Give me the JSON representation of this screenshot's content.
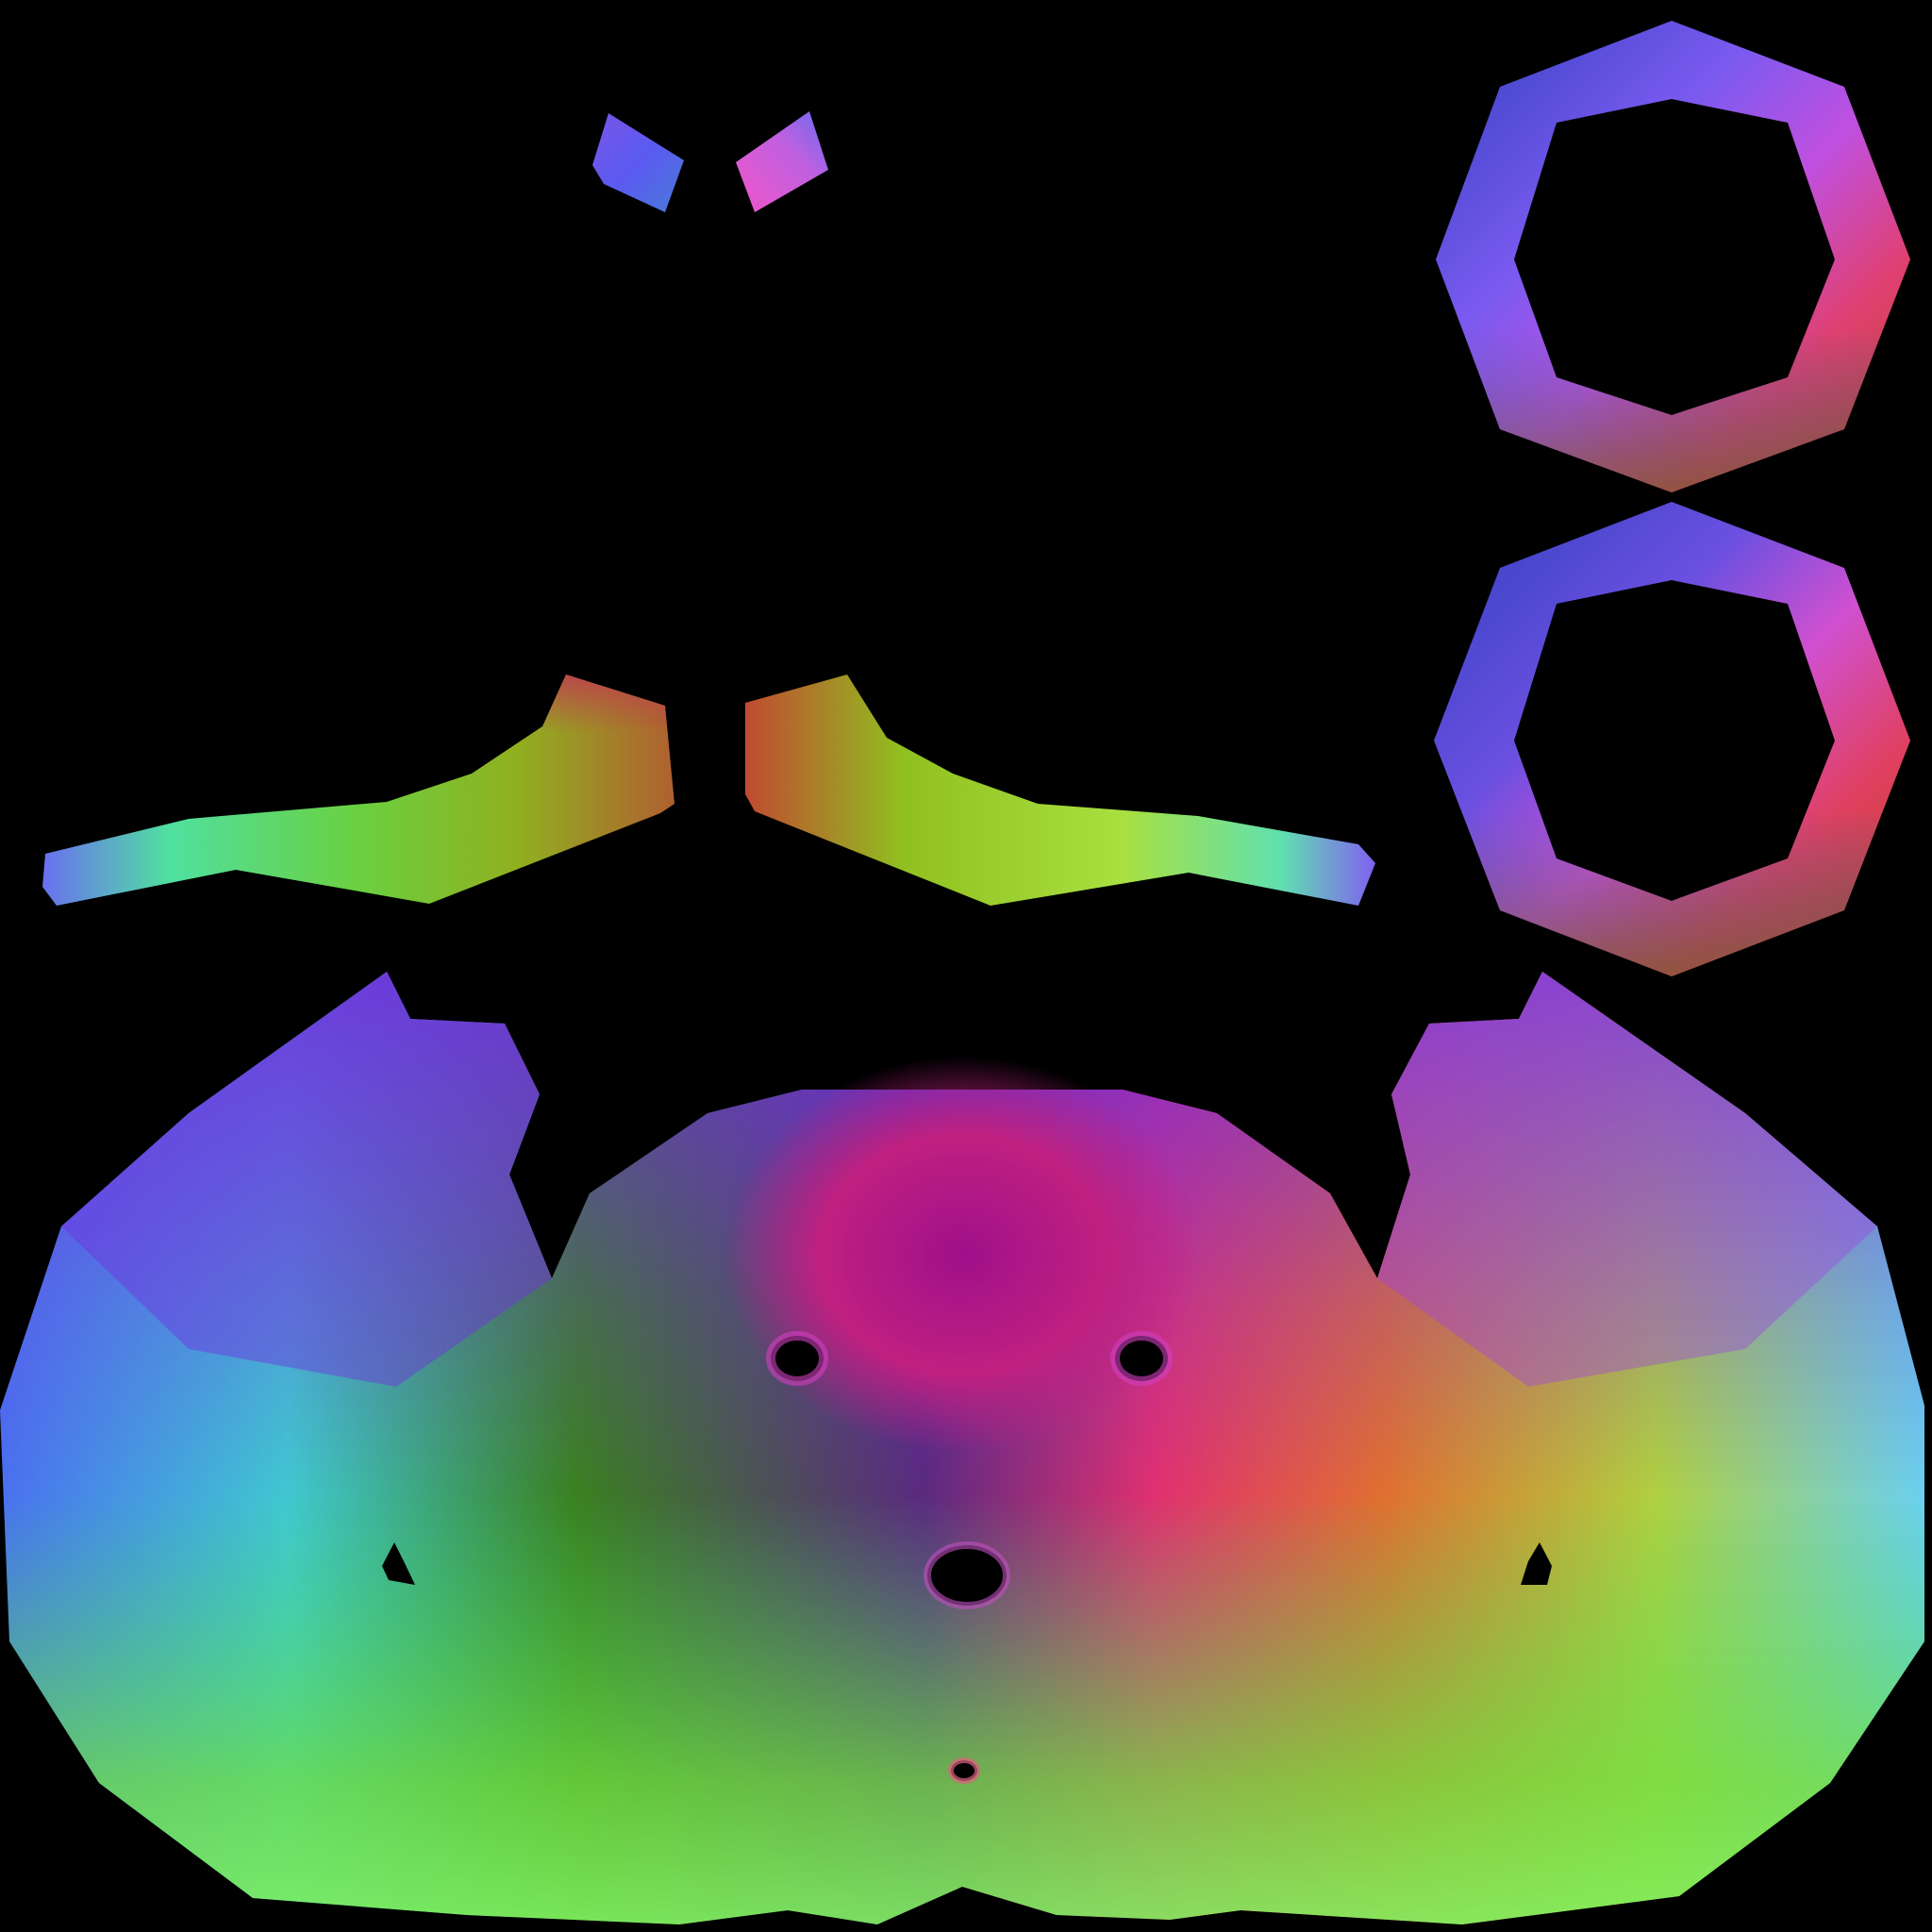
{
  "image": {
    "kind": "uv-texture-map",
    "background_color": "#000000"
  },
  "islands": [
    {
      "name": "small-piece-left",
      "colors": [
        "#5a5af0",
        "#7a55e8",
        "#4a7ad8"
      ]
    },
    {
      "name": "small-piece-right",
      "colors": [
        "#f055c8",
        "#c060e0",
        "#6a6af0"
      ]
    },
    {
      "name": "ring-upper",
      "colors": [
        "#7a5af0",
        "#c050e0",
        "#e04070",
        "#b84820",
        "#7a5a30",
        "#2a5aa0",
        "#3040c0"
      ]
    },
    {
      "name": "ring-lower",
      "colors": [
        "#6a50e0",
        "#d050d0",
        "#e04060",
        "#b84820",
        "#704e30",
        "#2a4aa0",
        "#3040c0"
      ]
    },
    {
      "name": "strip-left",
      "colors": [
        "#6a70f0",
        "#50e0a0",
        "#6ad040",
        "#90b020",
        "#c04040"
      ]
    },
    {
      "name": "strip-right",
      "colors": [
        "#c04a30",
        "#90c020",
        "#a8e040",
        "#60e0b0",
        "#8060f0"
      ]
    },
    {
      "name": "face-mask",
      "colors": [
        "#7030e0",
        "#4a70f0",
        "#40c8d0",
        "#40e060",
        "#70c020",
        "#3a8020",
        "#a0108a",
        "#e03070",
        "#e07030",
        "#b0d040",
        "#6ad0f0"
      ]
    }
  ]
}
